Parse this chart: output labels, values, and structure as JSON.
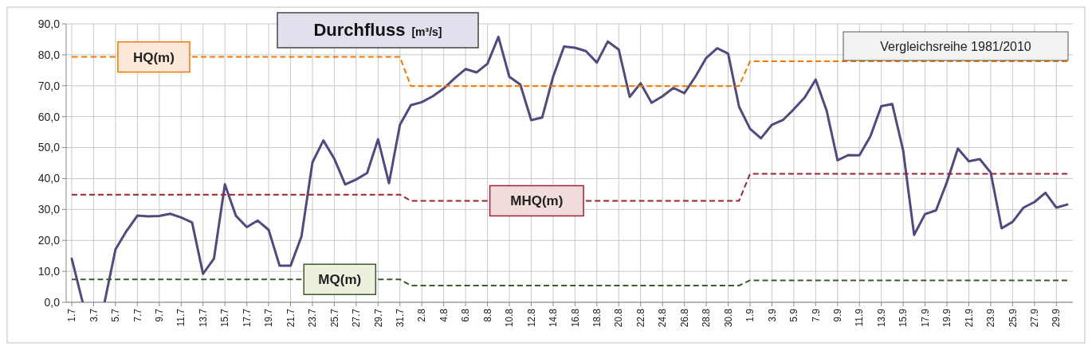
{
  "chart_data": {
    "type": "line",
    "title": "Durchfluss",
    "subtitle": "[m³/s]",
    "annotations": [
      "Vergleichsreihe 1981/2010"
    ],
    "categories": [
      "1.7",
      null,
      "3.7",
      null,
      "5.7",
      null,
      "7.7",
      null,
      "9.7",
      null,
      "11.7",
      null,
      "13.7",
      null,
      "15.7",
      null,
      "17.7",
      null,
      "19.7",
      null,
      "21.7",
      null,
      "23.7",
      null,
      "25.7",
      null,
      "27.7",
      null,
      "29.7",
      null,
      "31.7",
      null,
      "2.8",
      null,
      "4.8",
      null,
      "6.8",
      null,
      "8.8",
      null,
      "10.8",
      null,
      "12.8",
      null,
      "14.8",
      null,
      "16.8",
      null,
      "18.8",
      null,
      "20.8",
      null,
      "22.8",
      null,
      "24.8",
      null,
      "26.8",
      null,
      "28.8",
      null,
      "30.8",
      null,
      "1.9",
      null,
      "3.9",
      null,
      "5.9",
      null,
      "7.9",
      null,
      "9.9",
      null,
      "11.9",
      null,
      "13.9",
      null,
      "15.9",
      null,
      "17.9",
      null,
      "19.9",
      null,
      "21.9",
      null,
      "23.9",
      null,
      "25.9",
      null,
      "27.9",
      null,
      "29.9",
      null
    ],
    "ylim": [
      0,
      90
    ],
    "yticks": [
      {
        "value": 0,
        "label": "0,0"
      },
      {
        "value": 10,
        "label": "10,0"
      },
      {
        "value": 20,
        "label": "20,0"
      },
      {
        "value": 30,
        "label": "30,0"
      },
      {
        "value": 40,
        "label": "40,0"
      },
      {
        "value": 50,
        "label": "50,0"
      },
      {
        "value": 60,
        "label": "60,0"
      },
      {
        "value": 70,
        "label": "70,0"
      },
      {
        "value": 80,
        "label": "80,0"
      },
      {
        "value": 90,
        "label": "90,0"
      }
    ],
    "grid": true,
    "legend": false,
    "marker": "none",
    "series": [
      {
        "color": "#4f4b7e",
        "line_style": "solid",
        "values": [
          14.1,
          0,
          null,
          0,
          17.1,
          23,
          28,
          27.8,
          27.9,
          28.6,
          27.4,
          25.8,
          9.2,
          14.1,
          38.1,
          28,
          24.3,
          26.4,
          23.4,
          11.8,
          11.8,
          21.3,
          45.2,
          52.3,
          46.4,
          38.1,
          39.7,
          41.8,
          52.7,
          38.5,
          57.4,
          63.7,
          64.7,
          66.6,
          69.1,
          72.4,
          75.4,
          74.3,
          77.1,
          85.8,
          72.9,
          70.4,
          58.9,
          59.7,
          72.9,
          82.7,
          82.3,
          81.2,
          77.5,
          84.3,
          81.7,
          66.4,
          70.8,
          64.5,
          66.6,
          69.3,
          67.6,
          72.9,
          79,
          82.1,
          80.4,
          63.2,
          56.1,
          53,
          57.4,
          58.9,
          62.4,
          66.2,
          72,
          62,
          45.9,
          47.6,
          47.5,
          53.6,
          63.4,
          64.1,
          49,
          21.8,
          28.5,
          29.7,
          38.9,
          49.7,
          45.6,
          46.3,
          41.9,
          23.9,
          26,
          30.6,
          32.4,
          35.4,
          30.6,
          31.6
        ]
      },
      {
        "name": "HQ(m)",
        "color": "#f07800",
        "line_style": "dashed",
        "values": [
          79.3,
          79.3,
          79.3,
          79.3,
          79.3,
          null,
          null,
          null,
          null,
          null,
          null,
          79.3,
          79.3,
          79.3,
          79.3,
          79.3,
          79.3,
          79.3,
          79.3,
          79.3,
          79.3,
          79.3,
          79.3,
          79.3,
          79.3,
          79.3,
          79.3,
          79.3,
          79.3,
          79.3,
          79.3,
          69.9,
          69.9,
          69.9,
          69.9,
          69.9,
          69.9,
          69.9,
          69.9,
          69.9,
          69.9,
          69.9,
          69.9,
          69.9,
          69.9,
          69.9,
          69.9,
          69.9,
          69.9,
          69.9,
          69.9,
          69.9,
          69.9,
          69.9,
          69.9,
          69.9,
          69.9,
          69.9,
          69.9,
          69.9,
          69.9,
          69.9,
          77.9,
          77.9,
          77.9,
          77.9,
          77.9,
          77.9,
          77.9,
          77.9,
          77.9,
          77.9,
          77.9,
          77.9,
          77.9,
          77.9,
          77.9,
          77.9,
          77.9,
          77.9,
          77.9,
          77.9,
          77.9,
          77.9,
          77.9,
          77.9,
          77.9,
          77.9,
          77.9,
          77.9,
          77.9,
          77.9
        ]
      },
      {
        "name": "MHQ(m)",
        "color": "#9b2335",
        "line_style": "dashed",
        "values": [
          34.8,
          34.8,
          34.8,
          34.8,
          34.8,
          34.8,
          34.8,
          34.8,
          34.8,
          34.8,
          34.8,
          34.8,
          34.8,
          34.8,
          34.8,
          34.8,
          34.8,
          34.8,
          34.8,
          34.8,
          34.8,
          34.8,
          34.8,
          34.8,
          34.8,
          34.8,
          34.8,
          34.8,
          34.8,
          34.8,
          34.8,
          32.8,
          32.8,
          32.8,
          32.8,
          32.8,
          32.8,
          32.8,
          32.8,
          null,
          null,
          null,
          null,
          null,
          null,
          null,
          null,
          32.8,
          32.8,
          32.8,
          32.8,
          32.8,
          32.8,
          32.8,
          32.8,
          32.8,
          32.8,
          32.8,
          32.8,
          32.8,
          32.8,
          32.8,
          41.5,
          41.5,
          41.5,
          41.5,
          41.5,
          41.5,
          41.5,
          41.5,
          41.5,
          41.5,
          41.5,
          41.5,
          41.5,
          41.5,
          41.5,
          41.5,
          41.5,
          41.5,
          41.5,
          41.5,
          41.5,
          41.5,
          41.5,
          41.5,
          41.5,
          41.5,
          41.5,
          41.5,
          41.5,
          41.5
        ]
      },
      {
        "name": "MQ(m)",
        "color": "#3f5a2a",
        "line_style": "dashed",
        "values": [
          7.4,
          7.4,
          7.4,
          7.4,
          7.4,
          7.4,
          7.4,
          7.4,
          7.4,
          7.4,
          7.4,
          7.4,
          7.4,
          7.4,
          7.4,
          7.4,
          7.4,
          7.4,
          7.4,
          7.4,
          7.4,
          7.4,
          null,
          null,
          null,
          null,
          null,
          null,
          7.4,
          7.4,
          7.4,
          5.4,
          5.4,
          5.4,
          5.4,
          5.4,
          5.4,
          5.4,
          5.4,
          5.4,
          5.4,
          5.4,
          5.4,
          5.4,
          5.4,
          5.4,
          5.4,
          5.4,
          5.4,
          5.4,
          5.4,
          5.4,
          5.4,
          5.4,
          5.4,
          5.4,
          5.4,
          5.4,
          5.4,
          5.4,
          5.4,
          5.4,
          7.1,
          7.1,
          7.1,
          7.1,
          7.1,
          7.1,
          7.1,
          7.1,
          7.1,
          7.1,
          7.1,
          7.1,
          7.1,
          7.1,
          7.1,
          7.1,
          7.1,
          7.1,
          7.1,
          7.1,
          7.1,
          7.1,
          7.1,
          7.1,
          7.1,
          7.1,
          7.1,
          7.1,
          7.1,
          7.1
        ]
      }
    ]
  }
}
